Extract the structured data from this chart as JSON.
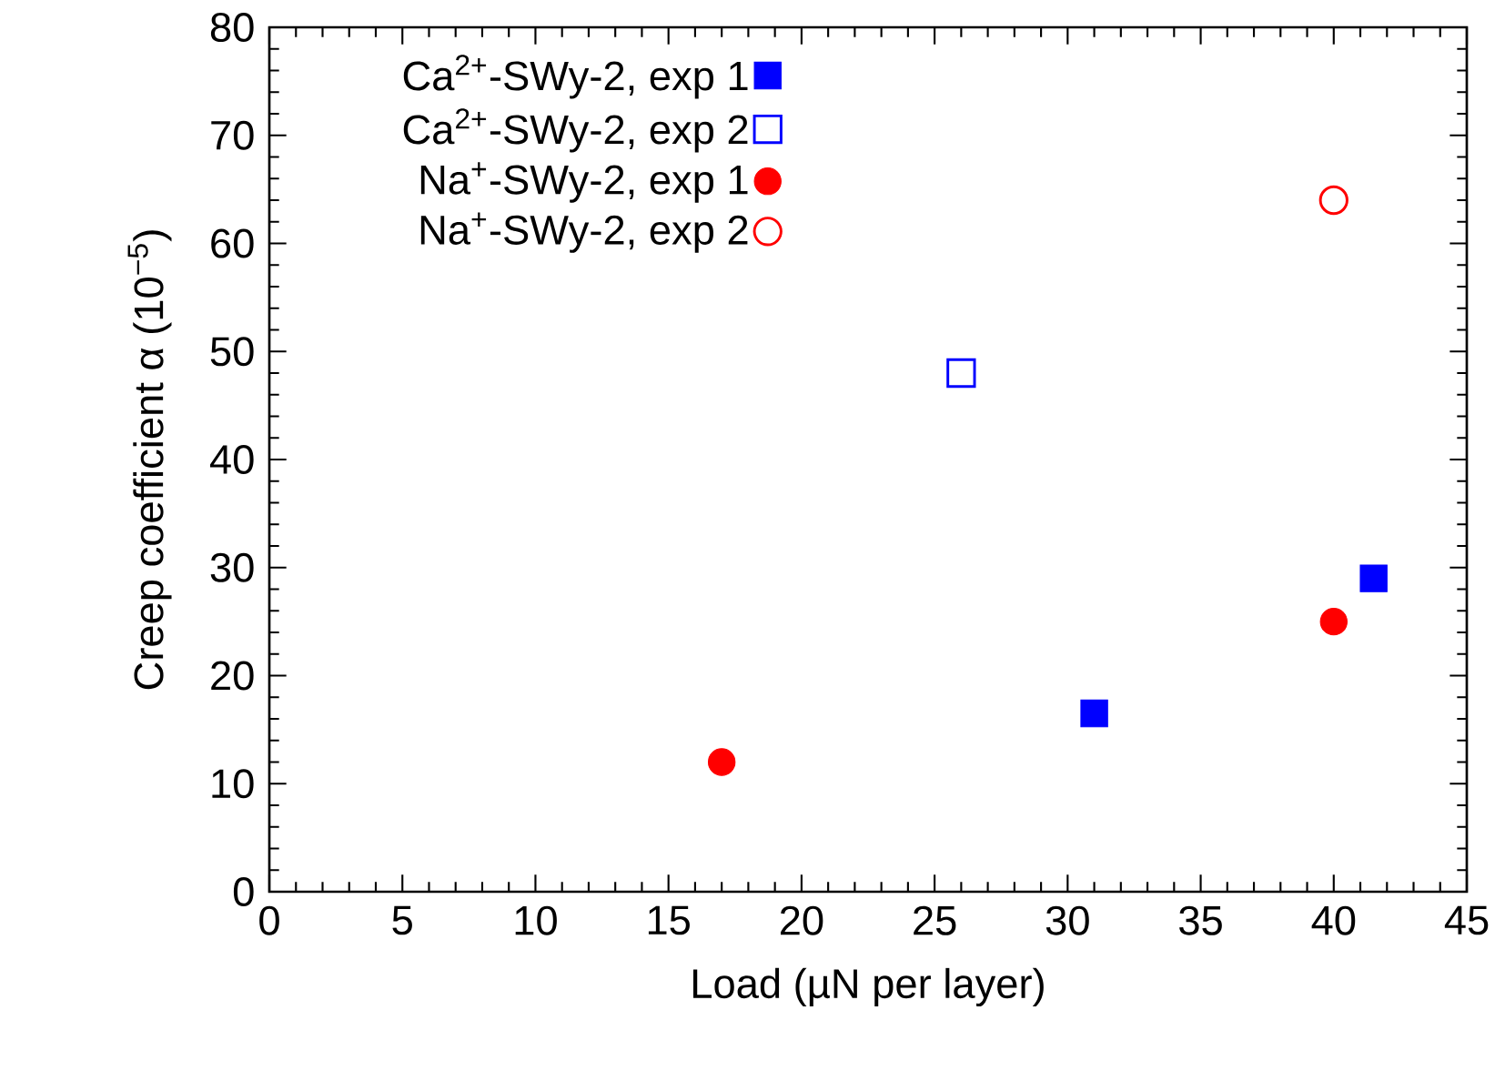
{
  "chart_data": {
    "type": "scatter",
    "xlabel": "Load (µN per layer)",
    "ylabel": "Creep coefficient α (10$^{−5}$)",
    "xlim": [
      0,
      45
    ],
    "ylim": [
      0,
      80
    ],
    "xticks": [
      0,
      5,
      10,
      15,
      20,
      25,
      30,
      35,
      40,
      45
    ],
    "yticks": [
      0,
      10,
      20,
      30,
      40,
      50,
      60,
      70,
      80
    ],
    "grid": false,
    "legend": "top left",
    "series": [
      {
        "name": "Ca$^{2+}$-SWy-2, exp 1",
        "color": "#0000ff",
        "marker": "square",
        "x": [
          31,
          41.5
        ],
        "values": [
          16.5,
          29
        ]
      },
      {
        "name": "Ca$^{2+}$-SWy-2, exp 2",
        "color": "#0000ff",
        "marker": "square",
        "x": [
          26
        ],
        "values": [
          48
        ]
      },
      {
        "name": "Na$^{+}$-SWy-2, exp 1",
        "color": "#ff0000",
        "marker": "circle",
        "x": [
          17,
          40
        ],
        "values": [
          12,
          25
        ]
      },
      {
        "name": "Na$^{+}$-SWy-2, exp 2",
        "color": "#ff0000",
        "marker": "circle",
        "x": [
          40
        ],
        "values": [
          64
        ]
      }
    ]
  }
}
